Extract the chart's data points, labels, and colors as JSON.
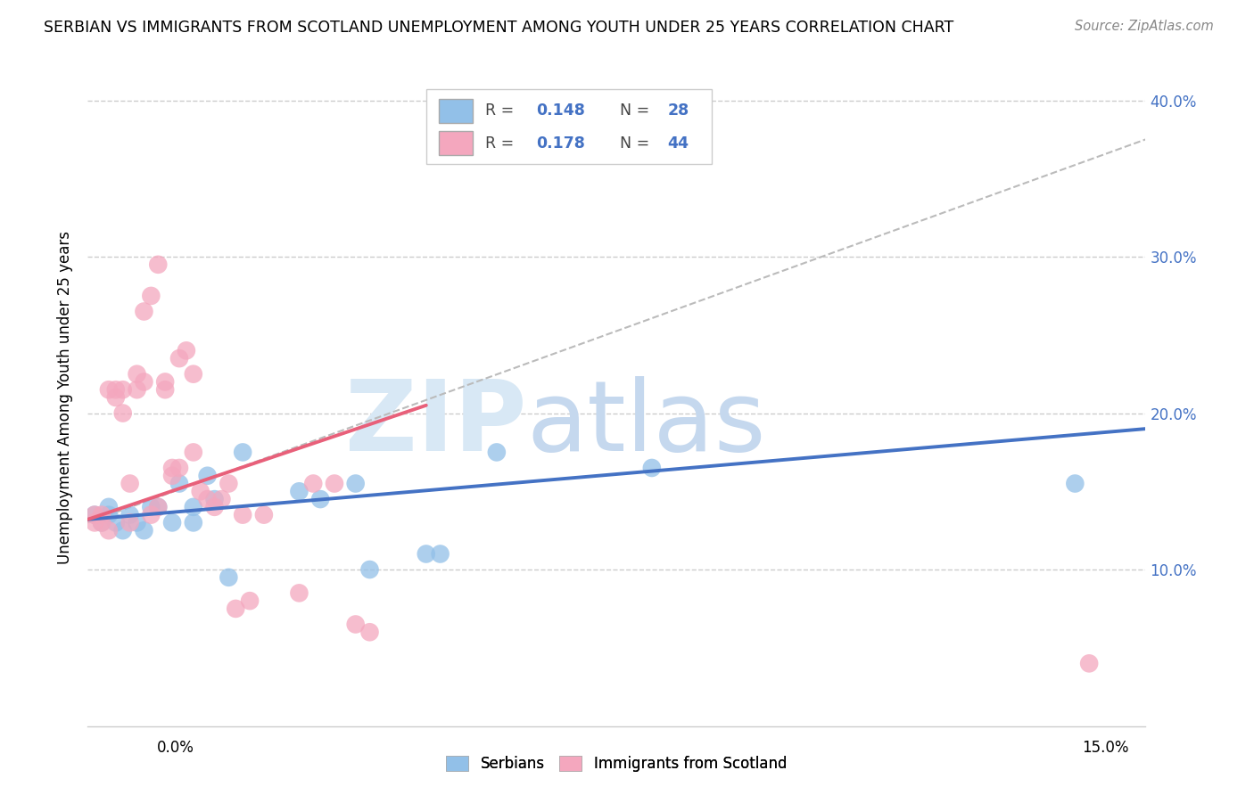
{
  "title": "SERBIAN VS IMMIGRANTS FROM SCOTLAND UNEMPLOYMENT AMONG YOUTH UNDER 25 YEARS CORRELATION CHART",
  "source": "Source: ZipAtlas.com",
  "ylabel": "Unemployment Among Youth under 25 years",
  "xlim": [
    0.0,
    0.15
  ],
  "ylim": [
    0.0,
    0.42
  ],
  "yticks": [
    0.1,
    0.2,
    0.3,
    0.4
  ],
  "ytick_labels": [
    "10.0%",
    "20.0%",
    "30.0%",
    "40.0%"
  ],
  "xtick_labels_bottom": [
    "0.0%",
    "15.0%"
  ],
  "legend_R1": "0.148",
  "legend_N1": "28",
  "legend_R2": "0.178",
  "legend_N2": "44",
  "label_serbians": "Serbians",
  "label_immigrants": "Immigrants from Scotland",
  "color_blue": "#92C0E8",
  "color_pink": "#F4A7BE",
  "color_blue_line": "#4472C4",
  "color_pink_line": "#E8607A",
  "color_text_blue": "#4472C4",
  "color_text_rn": "#4472C4",
  "color_grid": "#CCCCCC",
  "serbians_x": [
    0.001,
    0.002,
    0.003,
    0.003,
    0.004,
    0.005,
    0.006,
    0.007,
    0.008,
    0.009,
    0.01,
    0.012,
    0.013,
    0.015,
    0.015,
    0.017,
    0.018,
    0.02,
    0.022,
    0.03,
    0.033,
    0.038,
    0.04,
    0.048,
    0.05,
    0.058,
    0.08,
    0.14
  ],
  "serbians_y": [
    0.135,
    0.13,
    0.14,
    0.135,
    0.13,
    0.125,
    0.135,
    0.13,
    0.125,
    0.14,
    0.14,
    0.13,
    0.155,
    0.13,
    0.14,
    0.16,
    0.145,
    0.095,
    0.175,
    0.15,
    0.145,
    0.155,
    0.1,
    0.11,
    0.11,
    0.175,
    0.165,
    0.155
  ],
  "immigrants_x": [
    0.001,
    0.001,
    0.002,
    0.002,
    0.003,
    0.003,
    0.004,
    0.004,
    0.005,
    0.005,
    0.006,
    0.006,
    0.007,
    0.007,
    0.008,
    0.008,
    0.009,
    0.009,
    0.01,
    0.01,
    0.011,
    0.011,
    0.012,
    0.012,
    0.013,
    0.013,
    0.014,
    0.015,
    0.015,
    0.016,
    0.017,
    0.018,
    0.019,
    0.02,
    0.021,
    0.022,
    0.023,
    0.025,
    0.03,
    0.032,
    0.035,
    0.038,
    0.04,
    0.142
  ],
  "immigrants_y": [
    0.13,
    0.135,
    0.13,
    0.135,
    0.125,
    0.215,
    0.21,
    0.215,
    0.2,
    0.215,
    0.13,
    0.155,
    0.215,
    0.225,
    0.22,
    0.265,
    0.275,
    0.135,
    0.295,
    0.14,
    0.215,
    0.22,
    0.16,
    0.165,
    0.165,
    0.235,
    0.24,
    0.175,
    0.225,
    0.15,
    0.145,
    0.14,
    0.145,
    0.155,
    0.075,
    0.135,
    0.08,
    0.135,
    0.085,
    0.155,
    0.155,
    0.065,
    0.06,
    0.04
  ],
  "blue_line_x": [
    0.0,
    0.15
  ],
  "blue_line_y": [
    0.132,
    0.19
  ],
  "pink_line_x": [
    0.0,
    0.048
  ],
  "pink_line_y": [
    0.132,
    0.205
  ],
  "dash_line_x": [
    0.0,
    0.15
  ],
  "dash_line_y": [
    0.13,
    0.375
  ]
}
